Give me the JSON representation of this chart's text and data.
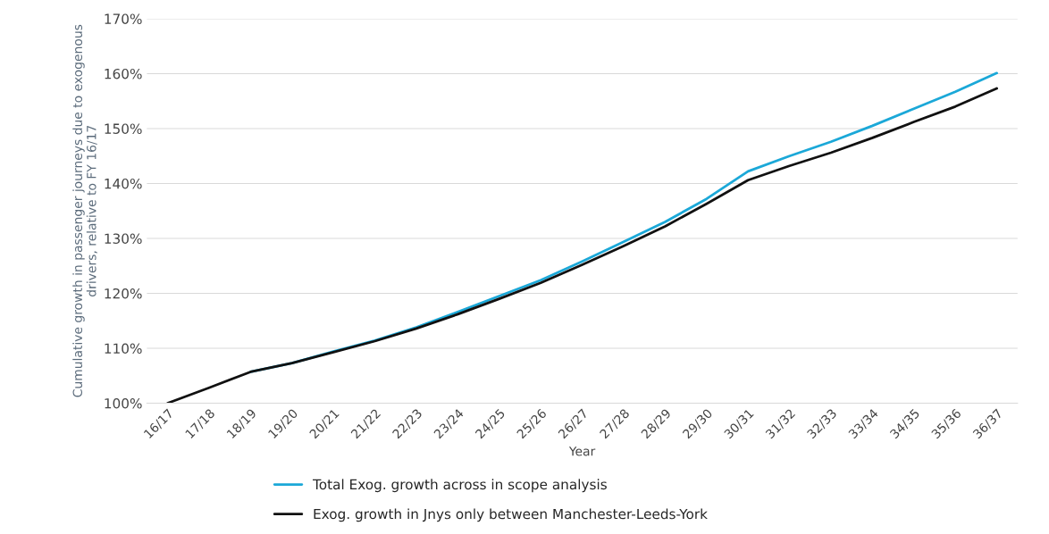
{
  "chart_data": {
    "type": "line",
    "xlabel": "Year",
    "ylabel": "Cumulative growth in passenger journeys due to exogenous drivers, relative to FY 16/17",
    "categories": [
      "16/17",
      "17/18",
      "18/19",
      "19/20",
      "20/21",
      "21/22",
      "22/23",
      "23/24",
      "24/25",
      "25/26",
      "26/27",
      "27/28",
      "28/29",
      "29/30",
      "30/31",
      "31/32",
      "32/33",
      "33/34",
      "34/35",
      "35/36",
      "36/37"
    ],
    "series": [
      {
        "name": "Total Exog. growth across in scope analysis",
        "color": "#1ba8d8",
        "values": [
          null,
          null,
          105.7,
          107.3,
          109.4,
          111.4,
          113.8,
          116.6,
          119.5,
          122.4,
          125.8,
          129.4,
          133.0,
          137.2,
          142.2,
          145.0,
          147.6,
          150.5,
          153.6,
          156.7,
          160.1
        ]
      },
      {
        "name": "Exog. growth in Jnys only between Manchester-Leeds-York",
        "color": "#111111",
        "values": [
          100,
          102.8,
          105.7,
          107.3,
          109.3,
          111.3,
          113.6,
          116.2,
          119.0,
          121.9,
          125.2,
          128.6,
          132.2,
          136.3,
          140.6,
          143.2,
          145.6,
          148.3,
          151.2,
          154.0,
          157.3
        ]
      }
    ],
    "ylim": [
      100,
      170
    ],
    "yticks": [
      {
        "value": 100,
        "label": "100%"
      },
      {
        "value": 110,
        "label": "110%"
      },
      {
        "value": 120,
        "label": "120%"
      },
      {
        "value": 130,
        "label": "130%"
      },
      {
        "value": 140,
        "label": "140%"
      },
      {
        "value": 150,
        "label": "150%"
      },
      {
        "value": 160,
        "label": "160%"
      },
      {
        "value": 170,
        "label": "170%"
      }
    ],
    "grid": "y",
    "legend": "bottom left",
    "marker": "none",
    "line_style": "solid"
  }
}
